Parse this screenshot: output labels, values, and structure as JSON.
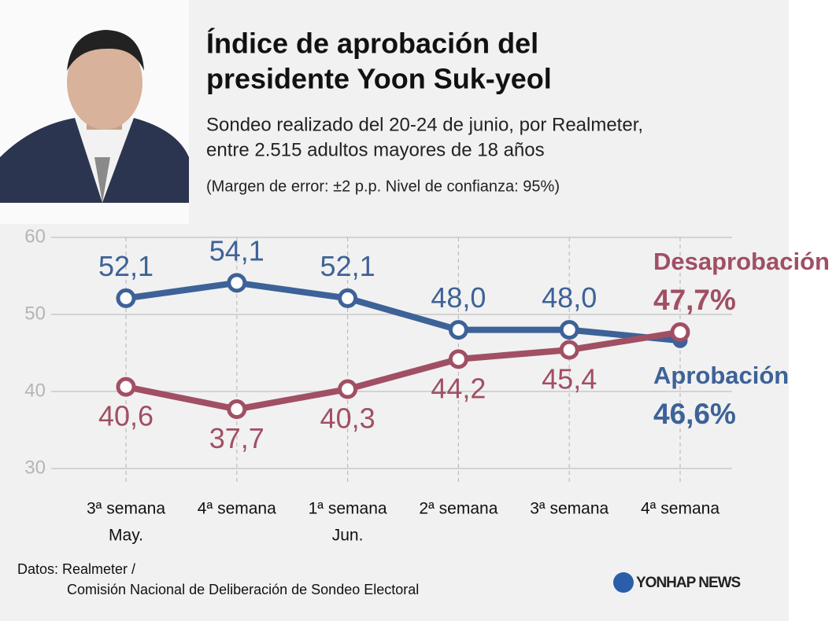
{
  "chart_data": {
    "type": "line",
    "title": [
      "Índice de aprobación del",
      "presidente Yoon Suk-yeol"
    ],
    "subtitle": [
      "Sondeo realizado del 20-24 de junio, por Realmeter,",
      "entre 2.515 adultos mayores de 18 años"
    ],
    "note": "(Margen de error: ±2 p.p. Nivel de confianza: 95%)",
    "source": [
      "Datos: Realmeter /",
      "Comisión Nacional de Deliberación de Sondeo Electoral"
    ],
    "logo": "YONHAP NEWS",
    "categories": [
      [
        "3ª semana",
        "May."
      ],
      [
        "4ª semana"
      ],
      [
        "1ª semana",
        "Jun."
      ],
      [
        "2ª semana"
      ],
      [
        "3ª semana"
      ],
      [
        "4ª semana"
      ]
    ],
    "series": [
      {
        "name": "Aprobación",
        "color": "#3d6298",
        "values": [
          52.1,
          54.1,
          52.1,
          48.0,
          48.0,
          46.6
        ],
        "value_labels": [
          "52,1",
          "54,1",
          "52,1",
          "48,0",
          "48,0",
          "46,6%"
        ]
      },
      {
        "name": "Desaprobación",
        "color": "#a14f63",
        "values": [
          40.6,
          37.7,
          40.3,
          44.2,
          45.4,
          47.7
        ],
        "value_labels": [
          "40,6",
          "37,7",
          "40,3",
          "44,2",
          "45,4",
          "47,7%"
        ]
      }
    ],
    "ylim": [
      30,
      60
    ],
    "yticks": [
      30,
      40,
      50,
      60
    ],
    "grid": true
  }
}
